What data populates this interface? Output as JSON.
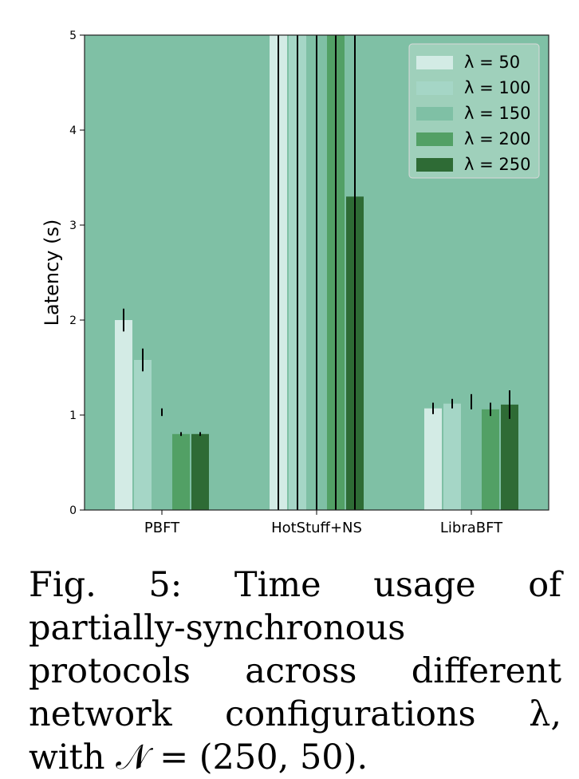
{
  "chart_data": {
    "type": "bar",
    "categories": [
      "PBFT",
      "HotStuff+NS",
      "LibraBFT"
    ],
    "ylabel": "Latency (s)",
    "xlabel": "",
    "ylim": [
      0,
      5
    ],
    "yticks": [
      "0",
      "1",
      "2",
      "3",
      "4",
      "5"
    ],
    "grid": false,
    "legend_position": "top-right",
    "series": [
      {
        "name": "λ = 50",
        "color": "#d3ebe5",
        "values": [
          2.0,
          5.0,
          1.07
        ],
        "error": [
          0.12,
          5.0,
          0.06
        ]
      },
      {
        "name": "λ = 100",
        "color": "#a5d6c6",
        "values": [
          1.58,
          5.0,
          1.12
        ],
        "error": [
          0.12,
          5.0,
          0.05
        ]
      },
      {
        "name": "λ = 150",
        "color": "#7fc0a5",
        "values": [
          1.03,
          5.0,
          1.14
        ],
        "error": [
          0.04,
          5.0,
          0.08
        ]
      },
      {
        "name": "λ = 200",
        "color": "#52a065",
        "values": [
          0.8,
          5.0,
          1.06
        ],
        "error": [
          0.02,
          5.0,
          0.07
        ]
      },
      {
        "name": "λ = 250",
        "color": "#2e6b35",
        "values": [
          0.8,
          3.3,
          1.11
        ],
        "error": [
          0.02,
          5.0,
          0.15
        ]
      }
    ]
  },
  "caption": {
    "label": "Fig. 5:",
    "text": "Time usage of partially-synchronous protocols across different network configurations λ, with 𝒩 = (250, 50)."
  }
}
